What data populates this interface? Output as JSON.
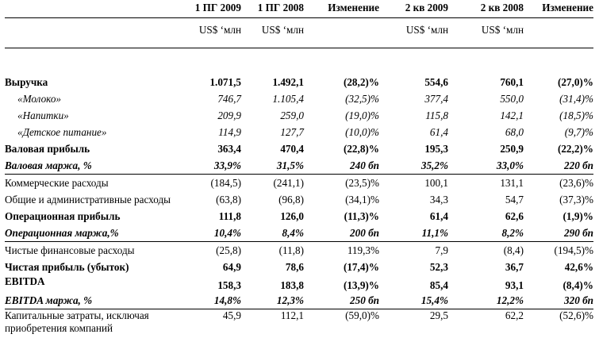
{
  "columns": [
    "1 ПГ 2009",
    "1 ПГ 2008",
    "Изменение",
    "2 кв 2009",
    "2 кв 2008",
    "Изменение"
  ],
  "units": [
    "US$ ‘млн",
    "US$ ‘млн",
    "",
    "US$ ‘млн",
    "US$ ‘млн",
    ""
  ],
  "rows": [
    {
      "label": "Выручка",
      "values": [
        "1.071,5",
        "1.492,1",
        "(28,2)%",
        "554,6",
        "760,1",
        "(27,0)%"
      ]
    },
    {
      "label": "«Молоко»",
      "values": [
        "746,7",
        "1.105,4",
        "(32,5)%",
        "377,4",
        "550,0",
        "(31,4)%"
      ]
    },
    {
      "label": "«Напитки»",
      "values": [
        "209,9",
        "259,0",
        "(19,0)%",
        "115,8",
        "142,1",
        "(18,5)%"
      ]
    },
    {
      "label": "«Детское питание»",
      "values": [
        "114,9",
        "127,7",
        "(10,0)%",
        "61,4",
        "68,0",
        "(9,7)%"
      ]
    },
    {
      "label": "Валовая прибыль",
      "values": [
        "363,4",
        "470,4",
        "(22,8)%",
        "195,3",
        "250,9",
        "(22,2)%"
      ]
    },
    {
      "label": "Валовая маржа, %",
      "values": [
        "33,9%",
        "31,5%",
        "240 бп",
        "35,2%",
        "33,0%",
        "220 бп"
      ]
    },
    {
      "label": "Коммерческие расходы",
      "values": [
        "(184,5)",
        "(241,1)",
        "(23,5)%",
        "100,1",
        "131,1",
        "(23,6)%"
      ]
    },
    {
      "label": "Общие и административные расходы",
      "values": [
        "(63,8)",
        "(96,8)",
        "(34,1)%",
        "34,3",
        "54,7",
        "(37,3)%"
      ]
    },
    {
      "label": "Операционная прибыль",
      "values": [
        "111,8",
        "126,0",
        "(11,3)%",
        "61,4",
        "62,6",
        "(1,9)%"
      ]
    },
    {
      "label": "Операционная маржа,%",
      "values": [
        "10,4%",
        "8,4%",
        "200 бп",
        "11,1%",
        "8,2%",
        "290 бп"
      ]
    },
    {
      "label": "Чистые финансовые расходы",
      "values": [
        "(25,8)",
        "(11,8)",
        "119,3%",
        "7,9",
        "(8,4)",
        "(194,5)%"
      ]
    },
    {
      "label": "Чистая прибыль (убыток)",
      "values": [
        "64,9",
        "78,6",
        "(17,4)%",
        "52,3",
        "36,7",
        "42,6%"
      ]
    },
    {
      "label": "EBITDA",
      "values": [
        "158,3",
        "183,8",
        "(13,9)%",
        "85,4",
        "93,1",
        "(8,4)%"
      ]
    },
    {
      "label": "EBITDA маржа, %",
      "values": [
        "14,8%",
        "12,3%",
        "250 бп",
        "15,4%",
        "12,2%",
        "320 бп"
      ]
    },
    {
      "label": "Капитальные затраты, исключая приобретения компаний",
      "values": [
        "45,9",
        "112,1",
        "(59,0)%",
        "29,5",
        "62,2",
        "(52,6)%"
      ]
    }
  ]
}
